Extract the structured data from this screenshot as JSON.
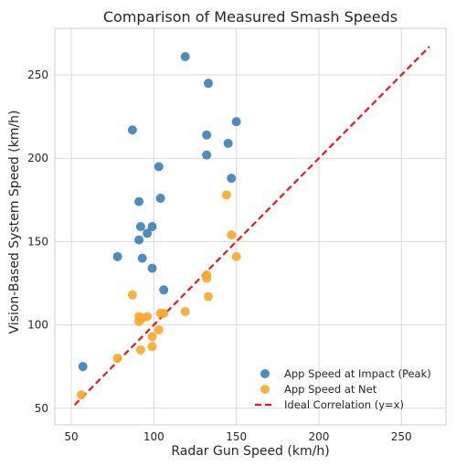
{
  "chart_data": {
    "type": "scatter",
    "title": "Comparison of Measured Smash Speeds",
    "xlabel": "Radar Gun Speed (km/h)",
    "ylabel": "Vision-Based System Speed (km/h)",
    "xlim": [
      40,
      277
    ],
    "ylim": [
      40,
      278
    ],
    "xticks": [
      50,
      100,
      150,
      200,
      250
    ],
    "yticks": [
      50,
      100,
      150,
      200,
      250
    ],
    "grid": true,
    "legend_position": "bottom-right",
    "series": [
      {
        "name": "App Speed at Impact (Peak)",
        "color": "#3a80b6",
        "points": [
          [
            57,
            75
          ],
          [
            78,
            141
          ],
          [
            87,
            217
          ],
          [
            91,
            151
          ],
          [
            91,
            174
          ],
          [
            92,
            159
          ],
          [
            93,
            140
          ],
          [
            96,
            155
          ],
          [
            99,
            134
          ],
          [
            99,
            159
          ],
          [
            103,
            195
          ],
          [
            104,
            176
          ],
          [
            106,
            121
          ],
          [
            119,
            261
          ],
          [
            132,
            202
          ],
          [
            132,
            214
          ],
          [
            133,
            245
          ],
          [
            145,
            209
          ],
          [
            147,
            188
          ],
          [
            150,
            222
          ]
        ]
      },
      {
        "name": "App Speed at Net",
        "color": "#f9a82a",
        "points": [
          [
            56,
            58
          ],
          [
            78,
            80
          ],
          [
            87,
            118
          ],
          [
            91,
            102
          ],
          [
            91,
            105
          ],
          [
            92,
            85
          ],
          [
            93,
            104
          ],
          [
            96,
            105
          ],
          [
            99,
            87
          ],
          [
            99,
            93
          ],
          [
            103,
            97
          ],
          [
            104,
            107
          ],
          [
            106,
            107
          ],
          [
            119,
            108
          ],
          [
            132,
            130
          ],
          [
            132,
            128
          ],
          [
            133,
            117
          ],
          [
            144,
            178
          ],
          [
            147,
            154
          ],
          [
            150,
            141
          ]
        ]
      },
      {
        "name": "Ideal Correlation (y=x)",
        "type": "line",
        "style": "dashed",
        "color": "#e41a1c",
        "x": [
          52,
          267
        ],
        "y": [
          52,
          267
        ]
      }
    ]
  }
}
